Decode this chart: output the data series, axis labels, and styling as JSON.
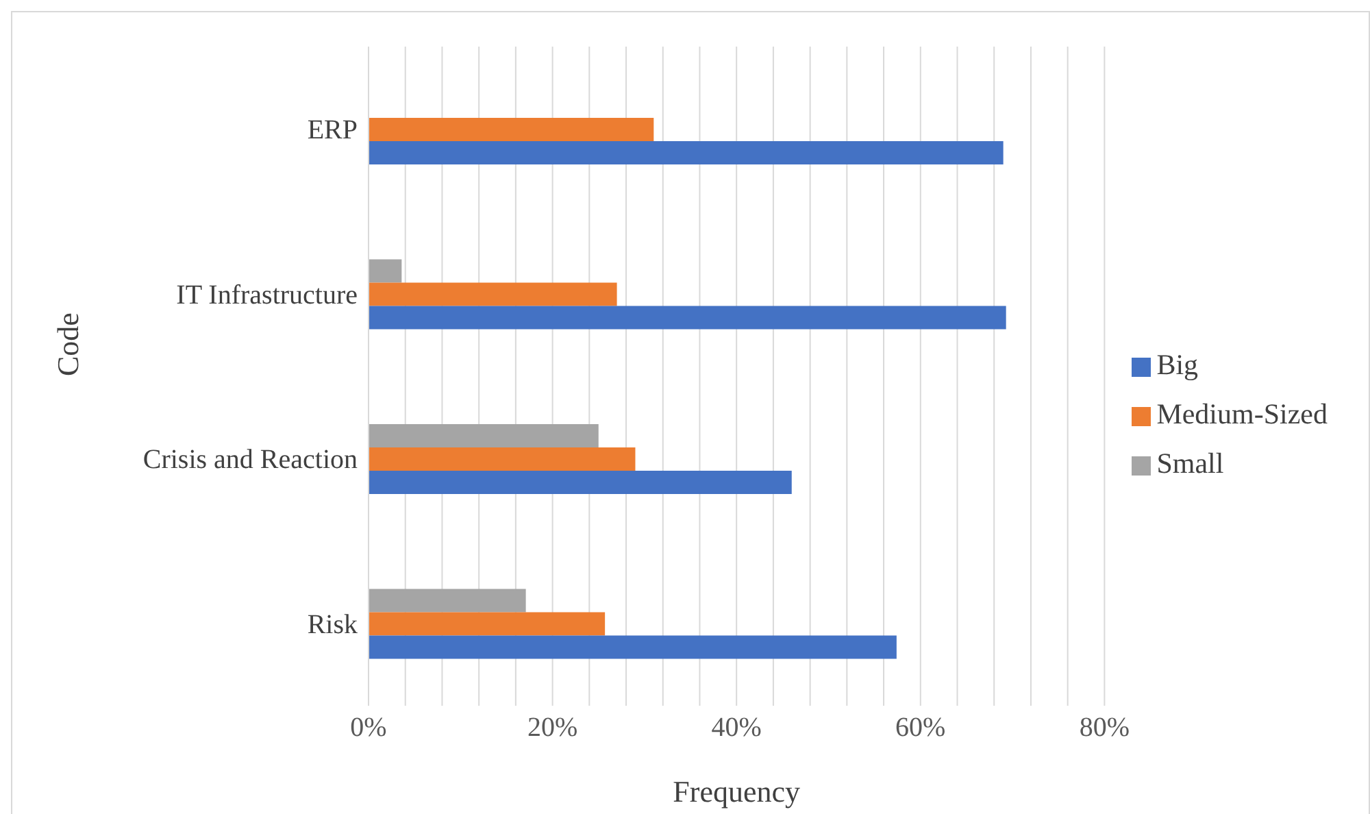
{
  "chart_data": {
    "type": "bar",
    "orientation": "horizontal",
    "xlabel": "Frequency",
    "ylabel": "Code",
    "categories": [
      "ERP",
      "IT Infrastructure",
      "Crisis and Reaction",
      "Risk"
    ],
    "series": [
      {
        "name": "Small",
        "color": "#a5a5a5",
        "values": [
          0,
          3.6,
          25,
          17.1
        ]
      },
      {
        "name": "Medium-Sized",
        "color": "#ed7d31",
        "values": [
          31,
          27,
          29,
          25.7
        ]
      },
      {
        "name": "Big",
        "color": "#4472c4",
        "values": [
          69,
          69.3,
          46,
          57.4
        ]
      }
    ],
    "xlim": [
      0,
      80
    ],
    "xticks": [
      {
        "value": 0,
        "label": "0%"
      },
      {
        "value": 4,
        "label": null
      },
      {
        "value": 8,
        "label": null
      },
      {
        "value": 12,
        "label": null
      },
      {
        "value": 16,
        "label": null
      },
      {
        "value": 20,
        "label": "20%"
      },
      {
        "value": 24,
        "label": null
      },
      {
        "value": 28,
        "label": null
      },
      {
        "value": 32,
        "label": null
      },
      {
        "value": 36,
        "label": null
      },
      {
        "value": 40,
        "label": "40%"
      },
      {
        "value": 44,
        "label": null
      },
      {
        "value": 48,
        "label": null
      },
      {
        "value": 52,
        "label": null
      },
      {
        "value": 56,
        "label": null
      },
      {
        "value": 60,
        "label": "60%"
      },
      {
        "value": 64,
        "label": null
      },
      {
        "value": 68,
        "label": null
      },
      {
        "value": 72,
        "label": null
      },
      {
        "value": 76,
        "label": null
      },
      {
        "value": 80,
        "label": "80%"
      }
    ],
    "grid": "x",
    "legend": "right"
  }
}
